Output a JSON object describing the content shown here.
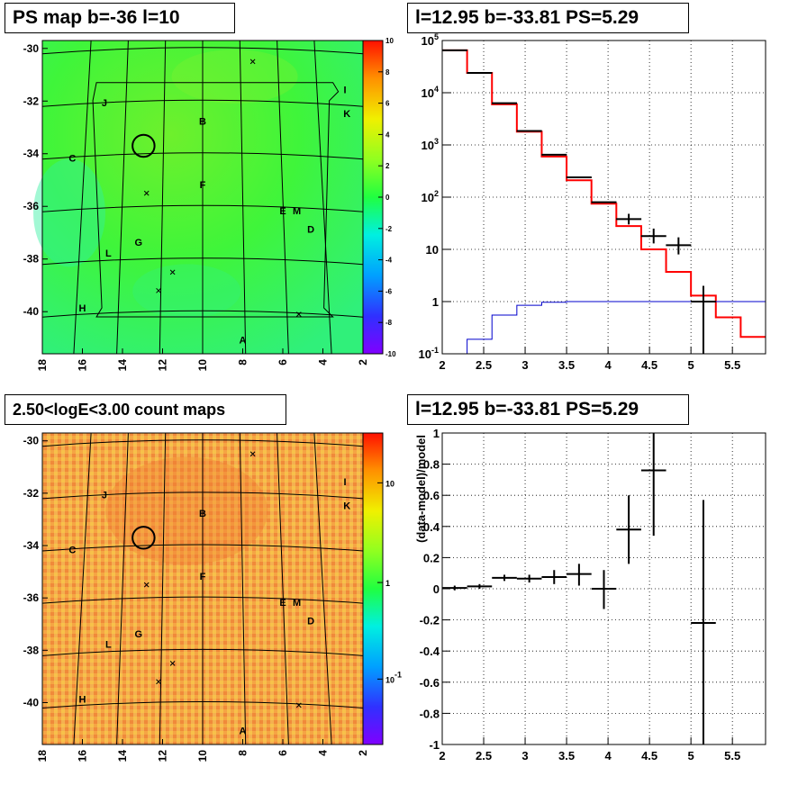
{
  "panels": {
    "tl_title": "PS map b=-36 l=10",
    "tr_title": "l=12.95 b=-33.81 PS=5.29",
    "bl_title": "2.50<logE<3.00 count maps",
    "br_title": "l=12.95 b=-33.81 PS=5.29"
  },
  "colors": {
    "map_green": "#3ff53a",
    "map_orange": "#f5a544",
    "model_line": "#ff0000",
    "low_line": "#0000cc",
    "data_marker": "#000000"
  },
  "chart_data": [
    {
      "type": "heatmap",
      "name_id": "ps-map",
      "xlabel": "",
      "ylabel": "",
      "xlim": [
        18,
        2
      ],
      "ylim": [
        -41.6,
        -29.7
      ],
      "x_ticks": [
        "18",
        "16",
        "14",
        "12",
        "10",
        "8",
        "6",
        "4",
        "2"
      ],
      "y_ticks": [
        "-30",
        "-32",
        "-34",
        "-36",
        "-38",
        "-40"
      ],
      "colorbar": {
        "min": -10,
        "max": 10,
        "ticks": [
          "10",
          "8",
          "6",
          "4",
          "2",
          "0",
          "-2",
          "-4",
          "-6",
          "-8",
          "-10"
        ]
      },
      "labels": [
        {
          "text": "J",
          "l": 14.9,
          "b": -32.2
        },
        {
          "text": "I",
          "l": 2.9,
          "b": -31.7
        },
        {
          "text": "K",
          "l": 2.8,
          "b": -32.6
        },
        {
          "text": "B",
          "l": 10.0,
          "b": -32.9
        },
        {
          "text": "C",
          "l": 16.5,
          "b": -34.3
        },
        {
          "text": "F",
          "l": 10.0,
          "b": -35.3
        },
        {
          "text": "E",
          "l": 6.0,
          "b": -36.3
        },
        {
          "text": "M",
          "l": 5.3,
          "b": -36.3
        },
        {
          "text": "D",
          "l": 4.6,
          "b": -37.0
        },
        {
          "text": "L",
          "l": 14.7,
          "b": -37.9
        },
        {
          "text": "G",
          "l": 13.2,
          "b": -37.5
        },
        {
          "text": "H",
          "l": 16.0,
          "b": -40.0
        },
        {
          "text": "A",
          "l": 8.0,
          "b": -41.2
        }
      ],
      "crosses": [
        {
          "l": 7.5,
          "b": -30.5
        },
        {
          "l": 12.8,
          "b": -35.5
        },
        {
          "l": 11.5,
          "b": -38.5
        },
        {
          "l": 12.2,
          "b": -39.2
        },
        {
          "l": 5.2,
          "b": -40.1
        }
      ],
      "circle": {
        "l": 12.95,
        "b": -33.7,
        "r": 0.55
      }
    },
    {
      "type": "line",
      "name_id": "spectrum",
      "xlabel": "",
      "ylabel": "",
      "xlim": [
        2,
        5.9
      ],
      "ylim_log10": [
        -1,
        5
      ],
      "log_y": true,
      "x_ticks": [
        "2",
        "2.5",
        "3",
        "3.5",
        "4",
        "4.5",
        "5",
        "5.5"
      ],
      "y_ticks": [
        "10^-1",
        "1",
        "10",
        "10^2",
        "10^3",
        "10^4",
        "10^5"
      ],
      "bin_edges": [
        2.0,
        2.3,
        2.6,
        2.9,
        3.2,
        3.5,
        3.8,
        4.1,
        4.4,
        4.7,
        5.0,
        5.3,
        5.6,
        5.9
      ],
      "series": [
        {
          "name": "",
          "kind": "model",
          "values": [
            65000,
            24000,
            6000,
            1800,
            600,
            210,
            75,
            28,
            10,
            3.7,
            1.3,
            0.5,
            0.21
          ]
        },
        {
          "name": "",
          "kind": "low",
          "values": [
            0.08,
            0.19,
            0.55,
            0.85,
            0.97,
            1.0,
            1.0,
            1.0,
            1.0,
            1.0,
            1.0,
            1.0,
            1.0
          ]
        }
      ],
      "data_points": [
        {
          "x": 2.15,
          "y": 65000
        },
        {
          "x": 2.45,
          "y": 24000
        },
        {
          "x": 2.75,
          "y": 6300
        },
        {
          "x": 3.05,
          "y": 1850
        },
        {
          "x": 3.35,
          "y": 650
        },
        {
          "x": 3.65,
          "y": 240
        },
        {
          "x": 3.95,
          "y": 80
        },
        {
          "x": 4.25,
          "y": 38,
          "lo": 30,
          "hi": 48
        },
        {
          "x": 4.55,
          "y": 18,
          "lo": 13,
          "hi": 25
        },
        {
          "x": 4.85,
          "y": 12,
          "lo": 8,
          "hi": 17
        },
        {
          "x": 5.15,
          "y": 1.0,
          "lo": 0.1,
          "hi": 2.0
        }
      ]
    },
    {
      "type": "heatmap",
      "name_id": "count-map",
      "xlabel": "",
      "ylabel": "",
      "xlim": [
        18,
        2
      ],
      "ylim": [
        -41.6,
        -29.7
      ],
      "x_ticks": [
        "18",
        "16",
        "14",
        "12",
        "10",
        "8",
        "6",
        "4",
        "2"
      ],
      "y_ticks": [
        "-30",
        "-32",
        "-34",
        "-36",
        "-38",
        "-40"
      ],
      "colorbar": {
        "log": true,
        "ticks": [
          "10",
          "1",
          "10^-1"
        ]
      },
      "labels": [
        {
          "text": "J",
          "l": 14.9,
          "b": -32.2
        },
        {
          "text": "I",
          "l": 2.9,
          "b": -31.7
        },
        {
          "text": "K",
          "l": 2.8,
          "b": -32.6
        },
        {
          "text": "B",
          "l": 10.0,
          "b": -32.9
        },
        {
          "text": "C",
          "l": 16.5,
          "b": -34.3
        },
        {
          "text": "F",
          "l": 10.0,
          "b": -35.3
        },
        {
          "text": "E",
          "l": 6.0,
          "b": -36.3
        },
        {
          "text": "M",
          "l": 5.3,
          "b": -36.3
        },
        {
          "text": "D",
          "l": 4.6,
          "b": -37.0
        },
        {
          "text": "L",
          "l": 14.7,
          "b": -37.9
        },
        {
          "text": "G",
          "l": 13.2,
          "b": -37.5
        },
        {
          "text": "H",
          "l": 16.0,
          "b": -40.0
        },
        {
          "text": "A",
          "l": 8.0,
          "b": -41.2
        }
      ],
      "crosses": [
        {
          "l": 7.5,
          "b": -30.5
        },
        {
          "l": 12.8,
          "b": -35.5
        },
        {
          "l": 11.5,
          "b": -38.5
        },
        {
          "l": 12.2,
          "b": -39.2
        },
        {
          "l": 5.2,
          "b": -40.1
        }
      ],
      "circle": {
        "l": 12.95,
        "b": -33.7,
        "r": 0.55
      }
    },
    {
      "type": "scatter",
      "name_id": "residuals",
      "xlabel": "",
      "ylabel": "(data-model)/model",
      "xlim": [
        2,
        5.9
      ],
      "ylim": [
        -1,
        1
      ],
      "x_ticks": [
        "2",
        "2.5",
        "3",
        "3.5",
        "4",
        "4.5",
        "5",
        "5.5"
      ],
      "y_ticks": [
        "1",
        "0.8",
        "0.6",
        "0.4",
        "0.2",
        "0",
        "-0.2",
        "-0.4",
        "-0.6",
        "-0.8",
        "-1"
      ],
      "points": [
        {
          "x": 2.15,
          "y": 0.005,
          "xerr": 0.15,
          "lo": -0.01,
          "hi": 0.02
        },
        {
          "x": 2.45,
          "y": 0.015,
          "xerr": 0.15,
          "lo": 0.0,
          "hi": 0.03
        },
        {
          "x": 2.75,
          "y": 0.07,
          "xerr": 0.15,
          "lo": 0.05,
          "hi": 0.09
        },
        {
          "x": 3.05,
          "y": 0.065,
          "xerr": 0.15,
          "lo": 0.04,
          "hi": 0.09
        },
        {
          "x": 3.35,
          "y": 0.075,
          "xerr": 0.15,
          "lo": 0.03,
          "hi": 0.12
        },
        {
          "x": 3.65,
          "y": 0.095,
          "xerr": 0.15,
          "lo": 0.02,
          "hi": 0.16
        },
        {
          "x": 3.95,
          "y": 0.0,
          "xerr": 0.15,
          "lo": -0.13,
          "hi": 0.12
        },
        {
          "x": 4.25,
          "y": 0.38,
          "xerr": 0.15,
          "lo": 0.16,
          "hi": 0.6
        },
        {
          "x": 4.55,
          "y": 0.76,
          "xerr": 0.15,
          "lo": 0.34,
          "hi": 1.0
        },
        {
          "x": 5.15,
          "y": -0.22,
          "xerr": 0.15,
          "lo": -1.0,
          "hi": 0.57
        }
      ]
    }
  ]
}
